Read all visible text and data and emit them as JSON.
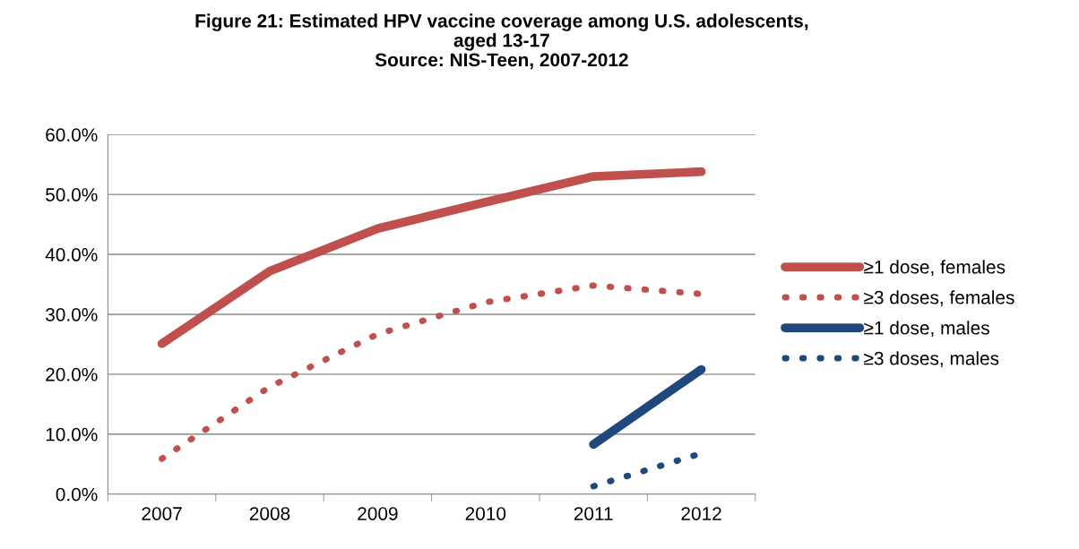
{
  "chart_data": {
    "type": "line",
    "title": "Figure 21: Estimated HPV vaccine coverage among U.S. adolescents,\naged 13-17\nSource: NIS-Teen, 2007-2012",
    "categories": [
      "2007",
      "2008",
      "2009",
      "2010",
      "2011",
      "2012"
    ],
    "series": [
      {
        "name": "≥1 dose, females",
        "color": "#c0504d",
        "line_style": "solid",
        "values": [
          25.1,
          37.2,
          44.3,
          48.7,
          53.0,
          53.8
        ]
      },
      {
        "name": "≥3 doses, females",
        "color": "#c0504d",
        "line_style": "dotted",
        "values": [
          5.9,
          17.9,
          26.7,
          32.0,
          34.8,
          33.4
        ]
      },
      {
        "name": "≥1 dose, males",
        "color": "#1f497d",
        "line_style": "solid",
        "values": [
          null,
          null,
          null,
          null,
          8.3,
          20.8
        ]
      },
      {
        "name": "≥3 doses, males",
        "color": "#1f497d",
        "line_style": "dotted",
        "values": [
          null,
          null,
          null,
          null,
          1.3,
          6.8
        ]
      }
    ],
    "ylim": [
      0,
      60
    ],
    "yticks": [
      {
        "value": 0,
        "label": "0.0%"
      },
      {
        "value": 10,
        "label": "10.0%"
      },
      {
        "value": 20,
        "label": "20.0%"
      },
      {
        "value": 30,
        "label": "30.0%"
      },
      {
        "value": 40,
        "label": "40.0%"
      },
      {
        "value": 50,
        "label": "50.0%"
      },
      {
        "value": 60,
        "label": "60.0%"
      }
    ],
    "grid": "y",
    "legend": "right",
    "marker": "none"
  }
}
